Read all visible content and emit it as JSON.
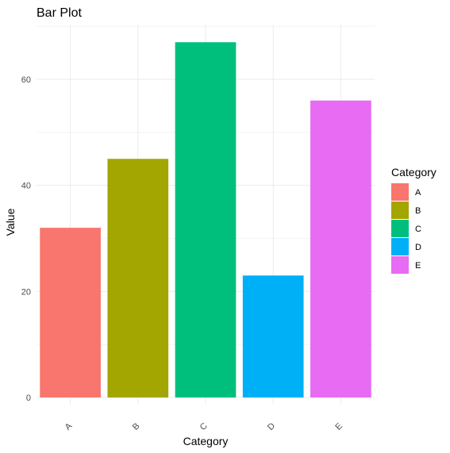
{
  "chart_data": {
    "type": "bar",
    "title": "Bar Plot",
    "xlabel": "Category",
    "ylabel": "Value",
    "categories": [
      "A",
      "B",
      "C",
      "D",
      "E"
    ],
    "values": [
      32,
      45,
      67,
      23,
      56
    ],
    "colors": [
      "#F8766D",
      "#A3A500",
      "#00BF7D",
      "#00B0F6",
      "#E76BF3"
    ],
    "ylim": [
      0,
      70
    ],
    "yticks": [
      "0",
      "20",
      "40",
      "60"
    ],
    "grid": true,
    "legend": {
      "title": "Category",
      "position": "right",
      "entries": [
        "A",
        "B",
        "C",
        "D",
        "E"
      ]
    }
  }
}
